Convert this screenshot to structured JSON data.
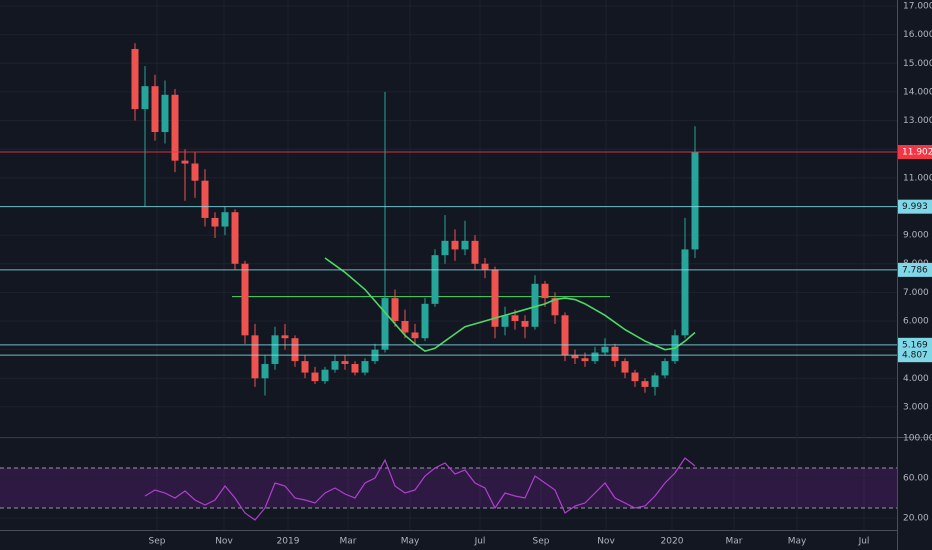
{
  "chart_data": [
    {
      "type": "candlestick",
      "open": [
        15.5,
        13.4,
        14.2,
        12.6,
        13.9,
        11.6,
        11.5,
        10.9,
        9.6,
        9.3,
        9.8,
        8.0,
        5.5,
        4.0,
        4.5,
        5.5,
        5.4,
        4.6,
        4.2,
        3.9,
        4.3,
        4.6,
        4.5,
        4.2,
        4.6,
        5.0,
        6.8,
        6.0,
        5.6,
        5.4,
        6.6,
        8.3,
        8.8,
        8.5,
        8.8,
        8.0,
        7.8,
        5.8,
        6.2,
        6.0,
        5.8,
        7.3,
        6.8,
        6.2,
        4.8,
        4.7,
        4.6,
        4.9,
        5.1,
        4.6,
        4.2,
        3.9,
        3.7,
        4.1,
        4.6,
        5.5,
        8.5
      ],
      "high": [
        15.7,
        14.9,
        14.6,
        14.4,
        14.1,
        12.0,
        11.9,
        11.3,
        9.8,
        10.0,
        9.9,
        8.1,
        5.9,
        4.8,
        5.8,
        5.9,
        5.5,
        4.8,
        4.4,
        4.4,
        4.8,
        4.8,
        4.6,
        4.7,
        5.2,
        14.0,
        7.1,
        6.4,
        5.9,
        6.8,
        8.5,
        9.7,
        9.2,
        9.5,
        9.0,
        8.2,
        7.9,
        6.5,
        6.4,
        6.2,
        7.6,
        7.4,
        7.0,
        6.3,
        5.0,
        4.9,
        5.1,
        5.4,
        5.2,
        4.7,
        4.3,
        4.0,
        4.2,
        4.7,
        5.7,
        9.6,
        12.8
      ],
      "low": [
        13.0,
        10.0,
        12.3,
        12.2,
        11.2,
        10.2,
        10.3,
        9.3,
        8.9,
        9.0,
        7.8,
        5.2,
        3.7,
        3.4,
        4.3,
        5.0,
        4.4,
        4.0,
        3.8,
        3.8,
        4.2,
        4.3,
        4.1,
        4.1,
        4.5,
        4.9,
        5.8,
        5.4,
        5.2,
        5.3,
        6.5,
        8.0,
        8.1,
        8.3,
        7.8,
        7.5,
        5.4,
        5.5,
        5.7,
        5.4,
        5.7,
        6.5,
        5.9,
        4.6,
        4.5,
        4.4,
        4.5,
        4.8,
        4.4,
        4.0,
        3.7,
        3.5,
        3.4,
        4.0,
        4.5,
        5.4,
        8.2
      ],
      "close": [
        13.4,
        14.2,
        12.6,
        13.9,
        11.6,
        11.5,
        10.9,
        9.6,
        9.3,
        9.8,
        8.0,
        5.5,
        4.0,
        4.5,
        5.5,
        5.4,
        4.6,
        4.2,
        3.9,
        4.3,
        4.6,
        4.5,
        4.2,
        4.6,
        5.0,
        6.8,
        6.0,
        5.6,
        5.4,
        6.6,
        8.3,
        8.8,
        8.5,
        8.8,
        8.0,
        7.8,
        5.8,
        6.2,
        6.0,
        5.8,
        7.3,
        6.8,
        6.2,
        4.8,
        4.7,
        4.6,
        4.9,
        5.1,
        4.6,
        4.2,
        3.9,
        3.7,
        4.1,
        4.6,
        5.5,
        8.5,
        11.9
      ],
      "up_color": "#26a69a",
      "down_color": "#ef5350",
      "ma": {
        "color": "#4cd964",
        "values": [
          null,
          null,
          null,
          null,
          null,
          null,
          null,
          null,
          null,
          null,
          null,
          null,
          null,
          null,
          null,
          null,
          null,
          null,
          null,
          8.2,
          7.95,
          7.7,
          7.4,
          7.1,
          6.7,
          6.3,
          5.9,
          5.5,
          5.2,
          4.95,
          5.05,
          5.3,
          5.55,
          5.8,
          5.9,
          6.0,
          6.1,
          6.2,
          6.3,
          6.4,
          6.5,
          6.6,
          6.75,
          6.8,
          6.75,
          6.6,
          6.4,
          6.2,
          5.95,
          5.7,
          5.5,
          5.3,
          5.15,
          5.0,
          5.05,
          5.3,
          5.6
        ]
      },
      "levels": [
        {
          "value": 11.902,
          "label": "11.902",
          "color": "#f23645"
        },
        {
          "value": 9.993,
          "label": "9.993",
          "color": "#80d8e6"
        },
        {
          "value": 7.786,
          "label": "7.786",
          "color": "#80d8e6"
        },
        {
          "value": 5.169,
          "label": "5.169",
          "color": "#80d8e6"
        },
        {
          "value": 4.807,
          "label": "4.807",
          "color": "#80d8e6"
        }
      ],
      "segments": [
        {
          "value": 6.85,
          "from": 9.7,
          "to": 47.5,
          "color": "#4cd964"
        }
      ],
      "xlim": [
        -13.5,
        76.2
      ],
      "xticks": [
        {
          "value": 2.2,
          "label": "Sep"
        },
        {
          "value": 8.9,
          "label": "Nov"
        },
        {
          "value": 15.3,
          "label": "2019"
        },
        {
          "value": 21.3,
          "label": "Mar"
        },
        {
          "value": 27.5,
          "label": "May"
        },
        {
          "value": 34.5,
          "label": "Jul"
        },
        {
          "value": 40.6,
          "label": "Sep"
        },
        {
          "value": 47.1,
          "label": "Nov"
        },
        {
          "value": 53.7,
          "label": "2020"
        },
        {
          "value": 59.9,
          "label": "Mar"
        },
        {
          "value": 66.2,
          "label": "May"
        },
        {
          "value": 72.9,
          "label": "Jul"
        }
      ],
      "ylim": [
        1.95,
        17.21
      ],
      "yticks": [
        {
          "value": 3,
          "label": "3.000"
        },
        {
          "value": 4,
          "label": "4.000"
        },
        {
          "value": 5,
          "label": "5.000"
        },
        {
          "value": 6,
          "label": "6.000"
        },
        {
          "value": 7,
          "label": "7.000"
        },
        {
          "value": 8,
          "label": "8.000"
        },
        {
          "value": 9,
          "label": "9.000"
        },
        {
          "value": 10,
          "label": "10.000"
        },
        {
          "value": 11,
          "label": "11.000"
        },
        {
          "value": 12,
          "label": "12.000"
        },
        {
          "value": 13,
          "label": "13.000"
        },
        {
          "value": 14,
          "label": "14.000"
        },
        {
          "value": 15,
          "label": "15.000"
        },
        {
          "value": 16,
          "label": "16.000"
        },
        {
          "value": 17,
          "label": "17.000"
        }
      ],
      "grid": true
    },
    {
      "type": "line",
      "values": [
        null,
        42,
        48,
        45,
        40,
        47,
        38,
        33,
        38,
        52,
        40,
        25,
        18,
        30,
        55,
        52,
        40,
        38,
        35,
        45,
        50,
        44,
        40,
        55,
        60,
        78,
        52,
        45,
        48,
        62,
        70,
        75,
        64,
        68,
        55,
        50,
        30,
        45,
        42,
        40,
        62,
        55,
        48,
        25,
        32,
        35,
        45,
        55,
        40,
        35,
        30,
        32,
        42,
        55,
        65,
        80,
        72
      ],
      "color": "#b13fd0",
      "bands": [
        30,
        70
      ],
      "band_color": "#7b1fa2",
      "ylim": [
        -12,
        100
      ],
      "yticks": [
        {
          "value": 20,
          "label": "20.00"
        },
        {
          "value": 60,
          "label": "60.00"
        },
        {
          "value": 100,
          "label": "100.00"
        }
      ],
      "grid": true
    }
  ]
}
